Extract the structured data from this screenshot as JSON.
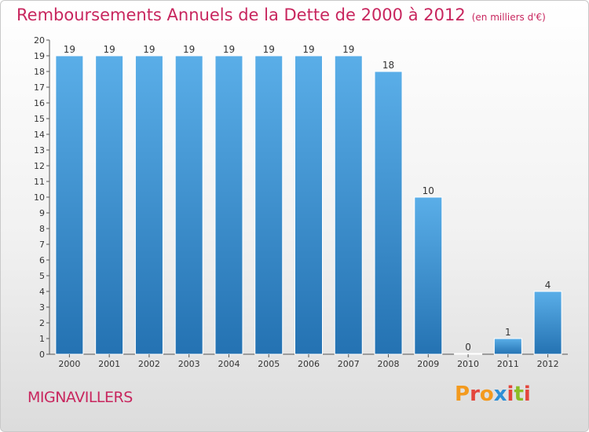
{
  "chart_data": {
    "type": "bar",
    "title": "Remboursements Annuels de la Dette de 2000 à 2012",
    "subtitle": "(en milliers d'€)",
    "categories": [
      "2000",
      "2001",
      "2002",
      "2003",
      "2004",
      "2005",
      "2006",
      "2007",
      "2008",
      "2009",
      "2010",
      "2011",
      "2012"
    ],
    "values": [
      19,
      19,
      19,
      19,
      19,
      19,
      19,
      19,
      18,
      10,
      0,
      1,
      4
    ],
    "ylim": [
      0,
      20
    ],
    "yticks": [
      0,
      1,
      2,
      3,
      4,
      5,
      6,
      7,
      8,
      9,
      10,
      11,
      12,
      13,
      14,
      15,
      16,
      17,
      18,
      19,
      20
    ],
    "grid": false,
    "bar_color_top": "#5aaee8",
    "bar_color_bottom": "#2472b2"
  },
  "footer": {
    "town": "MIGNAVILLERS",
    "logo_text": "Proxiti",
    "logo_colors": [
      "#f39a1e",
      "#e4463c",
      "#f39a1e",
      "#2c8fd6",
      "#e4463c",
      "#8cbd26",
      "#e4463c"
    ]
  }
}
